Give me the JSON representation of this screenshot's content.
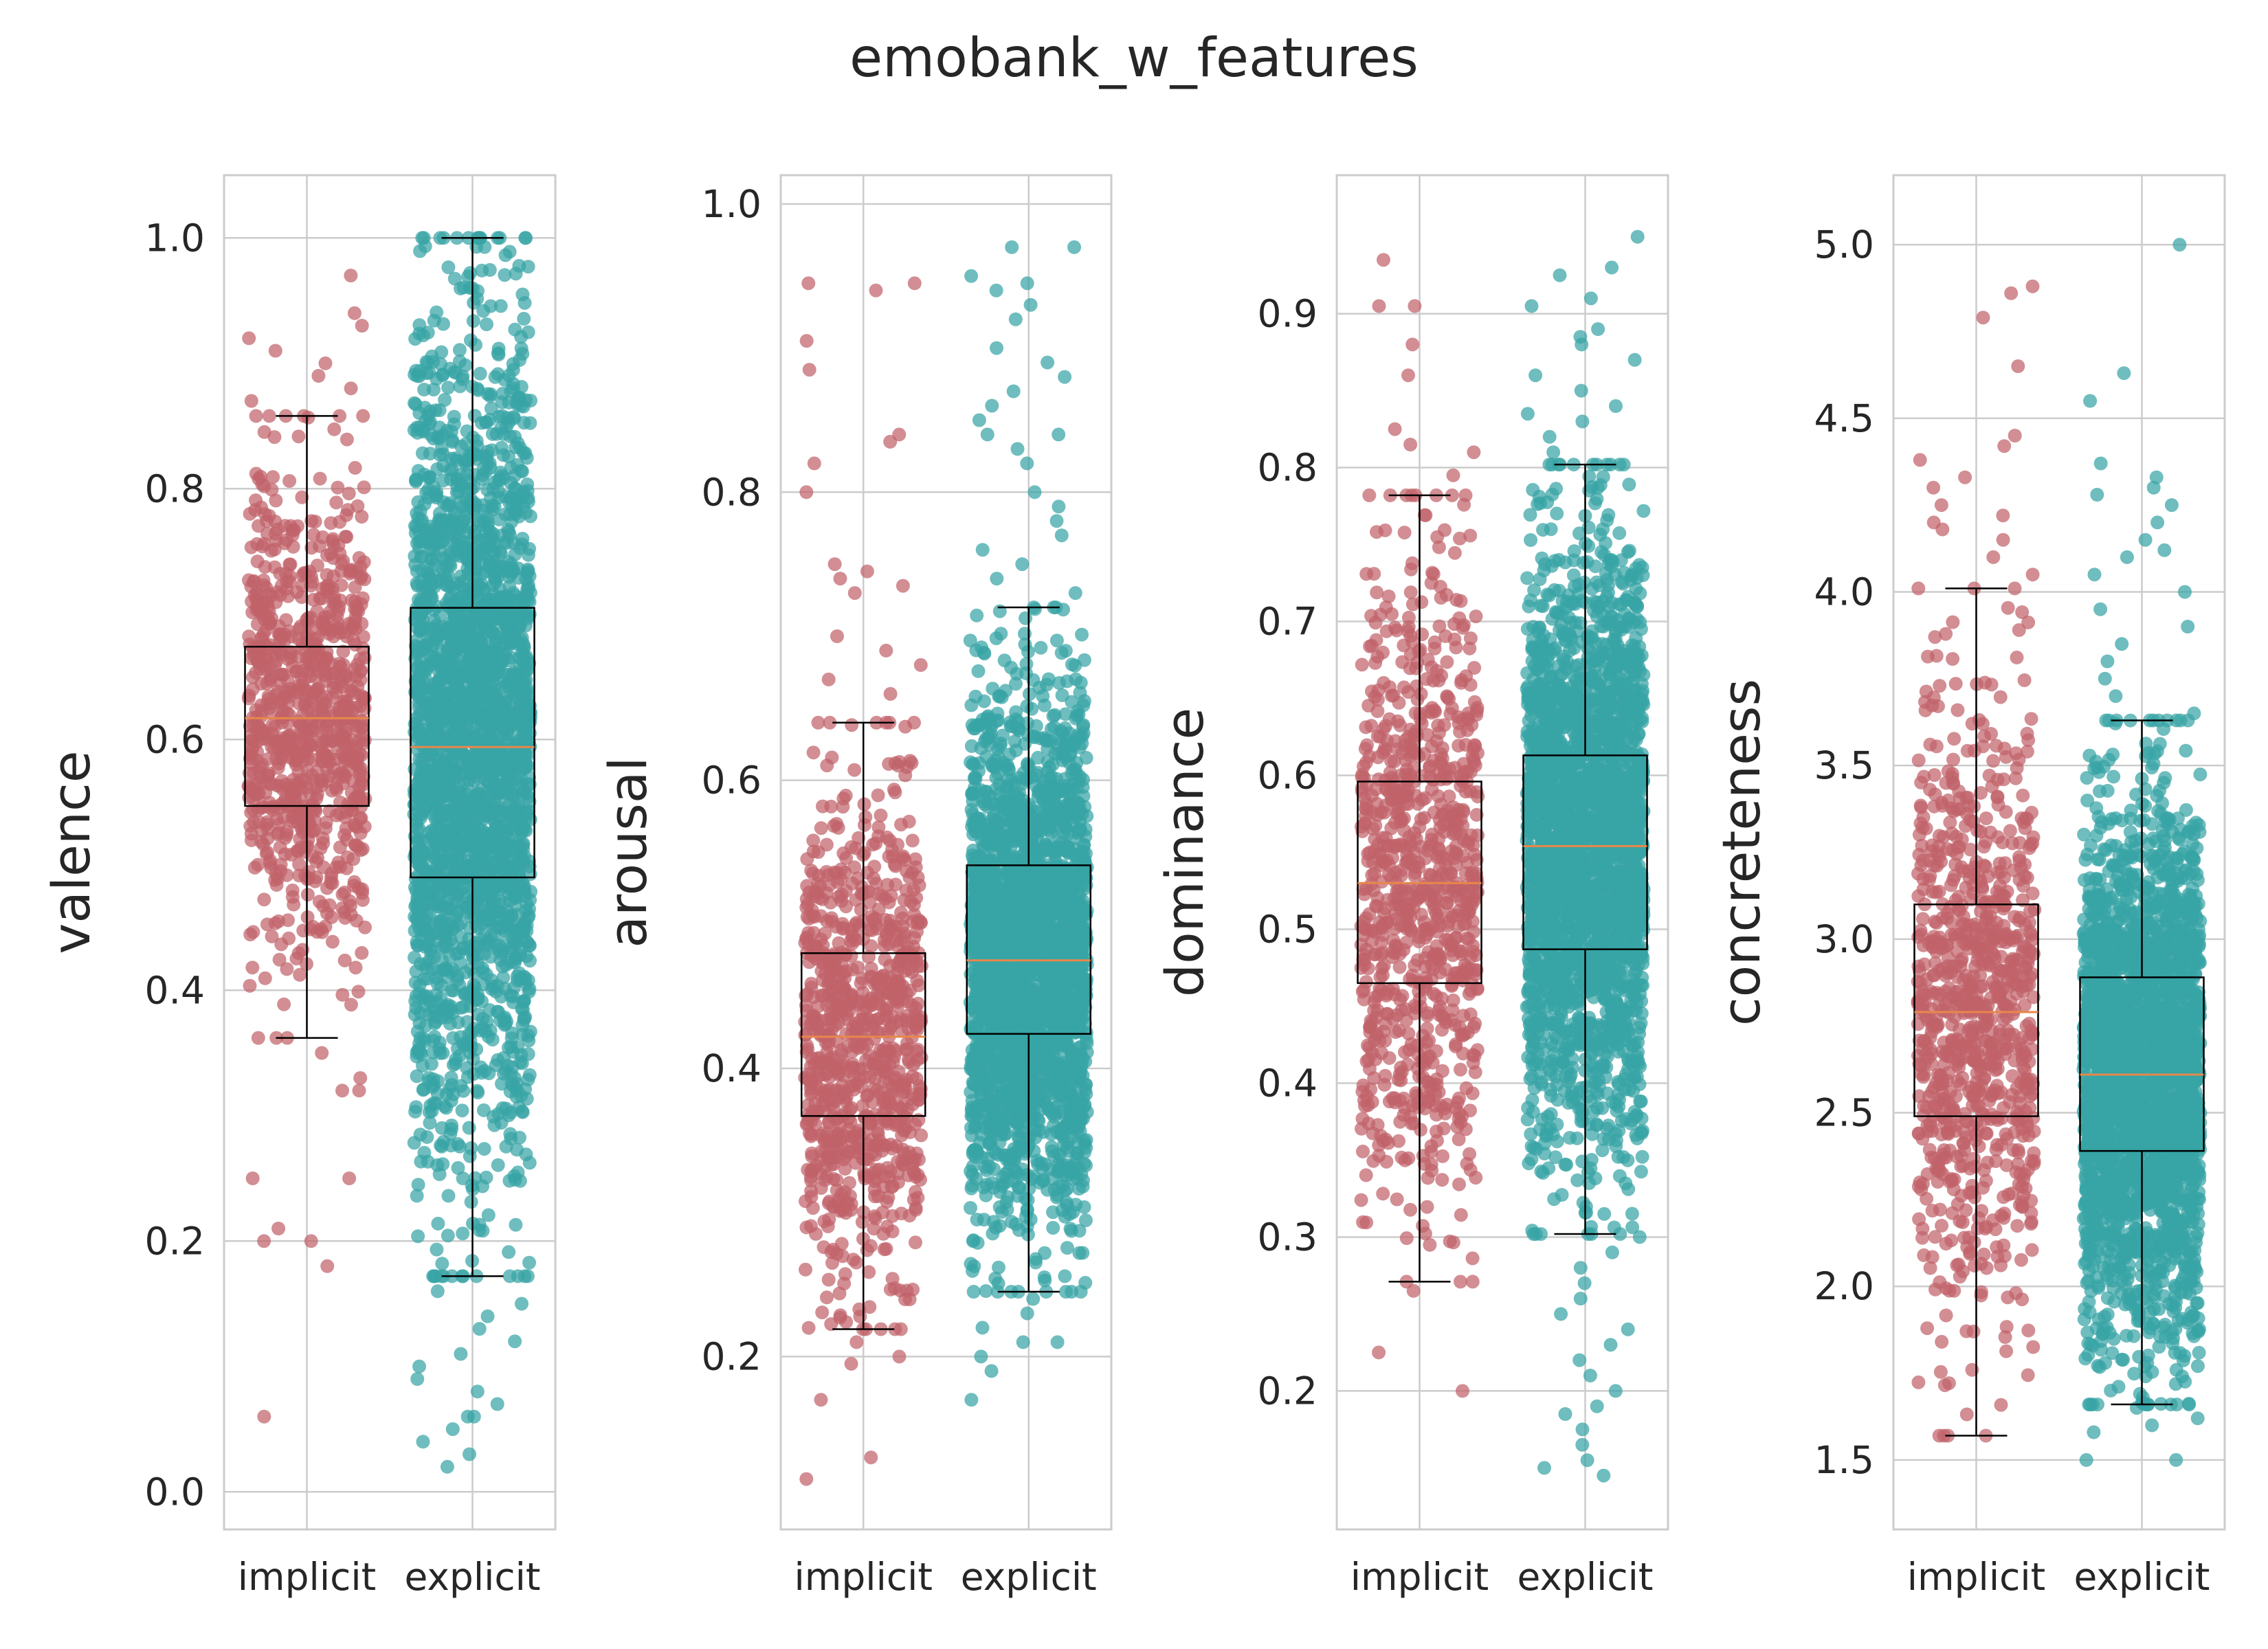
{
  "title": "emobank_w_features",
  "colors": {
    "implicit": "#c0626a",
    "explicit": "#38a3a5",
    "median": "#e8874a",
    "box": "#000000",
    "grid": "#cccccc"
  },
  "chart_data": [
    {
      "type": "box+strip",
      "ylabel": "valence",
      "categories": [
        "implicit",
        "explicit"
      ],
      "ylim": [
        -0.03,
        1.05
      ],
      "yticks": [
        0.0,
        0.2,
        0.4,
        0.6,
        0.8,
        1.0
      ],
      "ytick_labels": [
        "0.0",
        "0.2",
        "0.4",
        "0.6",
        "0.8",
        "1.0"
      ],
      "series": [
        {
          "q1": 0.547,
          "median": 0.617,
          "q3": 0.674,
          "whisker_low": 0.362,
          "whisker_high": 0.858,
          "n_points": 900,
          "outliers": [
            0.97,
            0.94,
            0.93,
            0.92,
            0.91,
            0.9,
            0.89,
            0.88,
            0.87,
            0.35,
            0.33,
            0.32,
            0.32,
            0.25,
            0.25,
            0.21,
            0.2,
            0.2,
            0.18,
            0.06
          ]
        },
        {
          "q1": 0.49,
          "median": 0.594,
          "q3": 0.705,
          "whisker_low": 0.172,
          "whisker_high": 1.0,
          "n_points": 2500,
          "outliers": [
            0.16,
            0.15,
            0.14,
            0.13,
            0.12,
            0.11,
            0.1,
            0.09,
            0.08,
            0.07,
            0.06,
            0.06,
            0.05,
            0.04,
            0.03,
            0.02
          ]
        }
      ]
    },
    {
      "type": "box+strip",
      "ylabel": "arousal",
      "categories": [
        "implicit",
        "explicit"
      ],
      "ylim": [
        0.08,
        1.02
      ],
      "yticks": [
        0.2,
        0.4,
        0.6,
        0.8,
        1.0
      ],
      "ytick_labels": [
        "0.2",
        "0.4",
        "0.6",
        "0.8",
        "1.0"
      ],
      "series": [
        {
          "q1": 0.367,
          "median": 0.422,
          "q3": 0.48,
          "whisker_low": 0.219,
          "whisker_high": 0.64,
          "n_points": 900,
          "outliers": [
            0.945,
            0.945,
            0.94,
            0.905,
            0.885,
            0.84,
            0.835,
            0.82,
            0.8,
            0.75,
            0.745,
            0.74,
            0.735,
            0.73,
            0.7,
            0.69,
            0.68,
            0.67,
            0.66,
            0.21,
            0.2,
            0.195,
            0.17,
            0.13,
            0.115
          ]
        },
        {
          "q1": 0.424,
          "median": 0.475,
          "q3": 0.541,
          "whisker_low": 0.245,
          "whisker_high": 0.72,
          "n_points": 2500,
          "outliers": [
            0.97,
            0.97,
            0.95,
            0.945,
            0.94,
            0.93,
            0.92,
            0.9,
            0.89,
            0.88,
            0.87,
            0.86,
            0.85,
            0.84,
            0.84,
            0.83,
            0.82,
            0.8,
            0.79,
            0.78,
            0.77,
            0.76,
            0.75,
            0.74,
            0.73,
            0.24,
            0.23,
            0.22,
            0.21,
            0.21,
            0.2,
            0.19,
            0.17
          ]
        }
      ]
    },
    {
      "type": "box+strip",
      "ylabel": "dominance",
      "categories": [
        "implicit",
        "explicit"
      ],
      "ylim": [
        0.11,
        0.99
      ],
      "yticks": [
        0.2,
        0.3,
        0.4,
        0.5,
        0.6,
        0.7,
        0.8,
        0.9
      ],
      "ytick_labels": [
        "0.2",
        "0.3",
        "0.4",
        "0.5",
        "0.6",
        "0.7",
        "0.8",
        "0.9"
      ],
      "series": [
        {
          "q1": 0.465,
          "median": 0.53,
          "q3": 0.596,
          "whisker_low": 0.271,
          "whisker_high": 0.782,
          "n_points": 900,
          "outliers": [
            0.935,
            0.905,
            0.905,
            0.88,
            0.86,
            0.825,
            0.815,
            0.81,
            0.795,
            0.265,
            0.225,
            0.2
          ]
        },
        {
          "q1": 0.487,
          "median": 0.554,
          "q3": 0.613,
          "whisker_low": 0.302,
          "whisker_high": 0.802,
          "n_points": 2500,
          "outliers": [
            0.95,
            0.93,
            0.925,
            0.91,
            0.905,
            0.89,
            0.885,
            0.88,
            0.87,
            0.86,
            0.85,
            0.84,
            0.835,
            0.83,
            0.82,
            0.81,
            0.3,
            0.29,
            0.28,
            0.27,
            0.26,
            0.25,
            0.24,
            0.23,
            0.22,
            0.21,
            0.2,
            0.19,
            0.185,
            0.175,
            0.165,
            0.155,
            0.15,
            0.145
          ]
        }
      ]
    },
    {
      "type": "box+strip",
      "ylabel": "concreteness",
      "categories": [
        "implicit",
        "explicit"
      ],
      "ylim": [
        1.3,
        5.2
      ],
      "yticks": [
        1.5,
        2.0,
        2.5,
        3.0,
        3.5,
        4.0,
        4.5,
        5.0
      ],
      "ytick_labels": [
        "1.5",
        "2.0",
        "2.5",
        "3.0",
        "3.5",
        "4.0",
        "4.5",
        "5.0"
      ],
      "series": [
        {
          "q1": 2.49,
          "median": 2.79,
          "q3": 3.1,
          "whisker_low": 1.57,
          "whisker_high": 4.01,
          "n_points": 900,
          "outliers": [
            4.88,
            4.86,
            4.79,
            4.65,
            4.45,
            4.42,
            4.38,
            4.33,
            4.3,
            4.25,
            4.22,
            4.2,
            4.18,
            4.15,
            4.1,
            4.05
          ]
        },
        {
          "q1": 2.39,
          "median": 2.61,
          "q3": 2.89,
          "whisker_low": 1.66,
          "whisker_high": 3.63,
          "n_points": 2500,
          "outliers": [
            5.0,
            4.63,
            4.55,
            4.37,
            4.33,
            4.3,
            4.28,
            4.25,
            4.2,
            4.15,
            4.12,
            4.1,
            4.05,
            4.0,
            3.95,
            3.9,
            3.85,
            3.8,
            3.75,
            3.7,
            3.65,
            1.65,
            1.62,
            1.6,
            1.58,
            1.5,
            1.5
          ]
        }
      ]
    }
  ]
}
